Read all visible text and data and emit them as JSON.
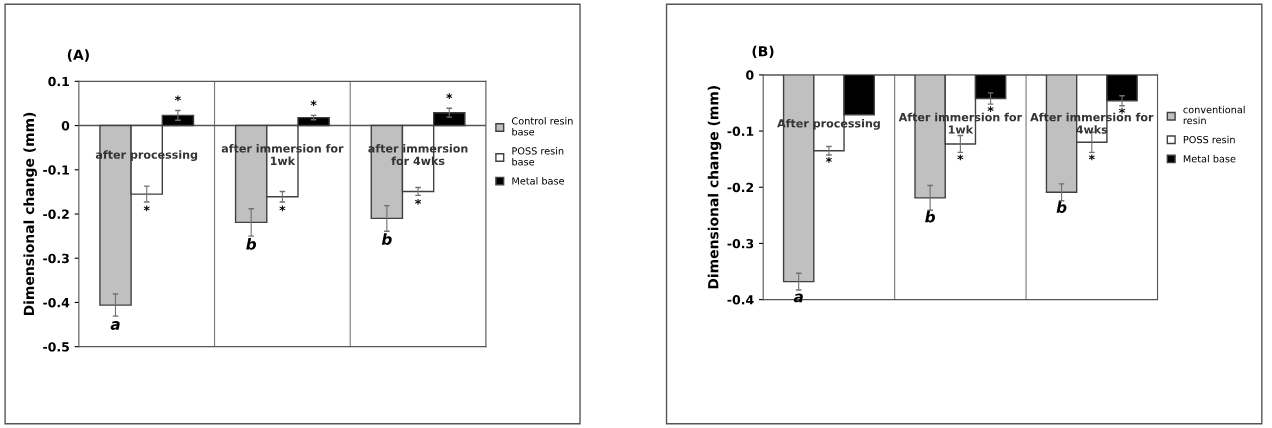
{
  "chart_data": [
    {
      "type": "bar",
      "title": "(A)",
      "ylabel": "Dimensional change (mm)",
      "categories": [
        "after processing",
        "after immersion for\n1wk",
        "after immersion\nfor 4wks"
      ],
      "ylim": [
        -0.5,
        0.1
      ],
      "yticks": [
        -0.5,
        -0.4,
        -0.3,
        -0.2,
        -0.1,
        0,
        0.1
      ],
      "grid": false,
      "legend": "right",
      "series": [
        {
          "name": "Control resin\nbase",
          "color": "#c0c0c0",
          "values": [
            -0.406,
            -0.219,
            -0.21
          ],
          "errors": [
            0.025,
            0.031,
            0.029
          ],
          "value_labels": [
            "a",
            "b",
            "b"
          ]
        },
        {
          "name": "POSS resin\nbase",
          "color": "#ffffff",
          "values": [
            -0.155,
            -0.161,
            -0.149
          ],
          "errors": [
            0.018,
            0.012,
            0.009
          ],
          "value_labels": [
            "*",
            "*",
            "*"
          ]
        },
        {
          "name": "Metal base",
          "color": "#000000",
          "values": [
            0.023,
            0.018,
            0.029
          ],
          "errors": [
            0.011,
            0.005,
            0.01
          ],
          "value_labels": [
            "*",
            "*",
            "*"
          ]
        }
      ]
    },
    {
      "type": "bar",
      "title": "(B)",
      "ylabel": "Dimensional change (mm)",
      "categories": [
        "After processing",
        "After immersion for\n1wk",
        "After immersion for\n4wks"
      ],
      "ylim": [
        -0.4,
        0
      ],
      "yticks": [
        -0.4,
        -0.3,
        -0.2,
        -0.1,
        0
      ],
      "grid": false,
      "legend": "right",
      "series": [
        {
          "name": "conventional\nresin",
          "color": "#c0c0c0",
          "values": [
            -0.368,
            -0.219,
            -0.209
          ],
          "errors": [
            0.015,
            0.022,
            0.015
          ],
          "value_labels": [
            "a",
            "b",
            "b"
          ]
        },
        {
          "name": "POSS resin",
          "color": "#ffffff",
          "values": [
            -0.135,
            -0.123,
            -0.12
          ],
          "errors": [
            0.0075,
            0.015,
            0.018
          ],
          "value_labels": [
            "*",
            "*",
            "*"
          ]
        },
        {
          "name": "Metal base",
          "color": "#000000",
          "values": [
            -0.071,
            -0.042,
            -0.046
          ],
          "errors": [
            null,
            0.01,
            0.009
          ],
          "value_labels": [
            null,
            "*",
            "*"
          ]
        }
      ]
    }
  ]
}
